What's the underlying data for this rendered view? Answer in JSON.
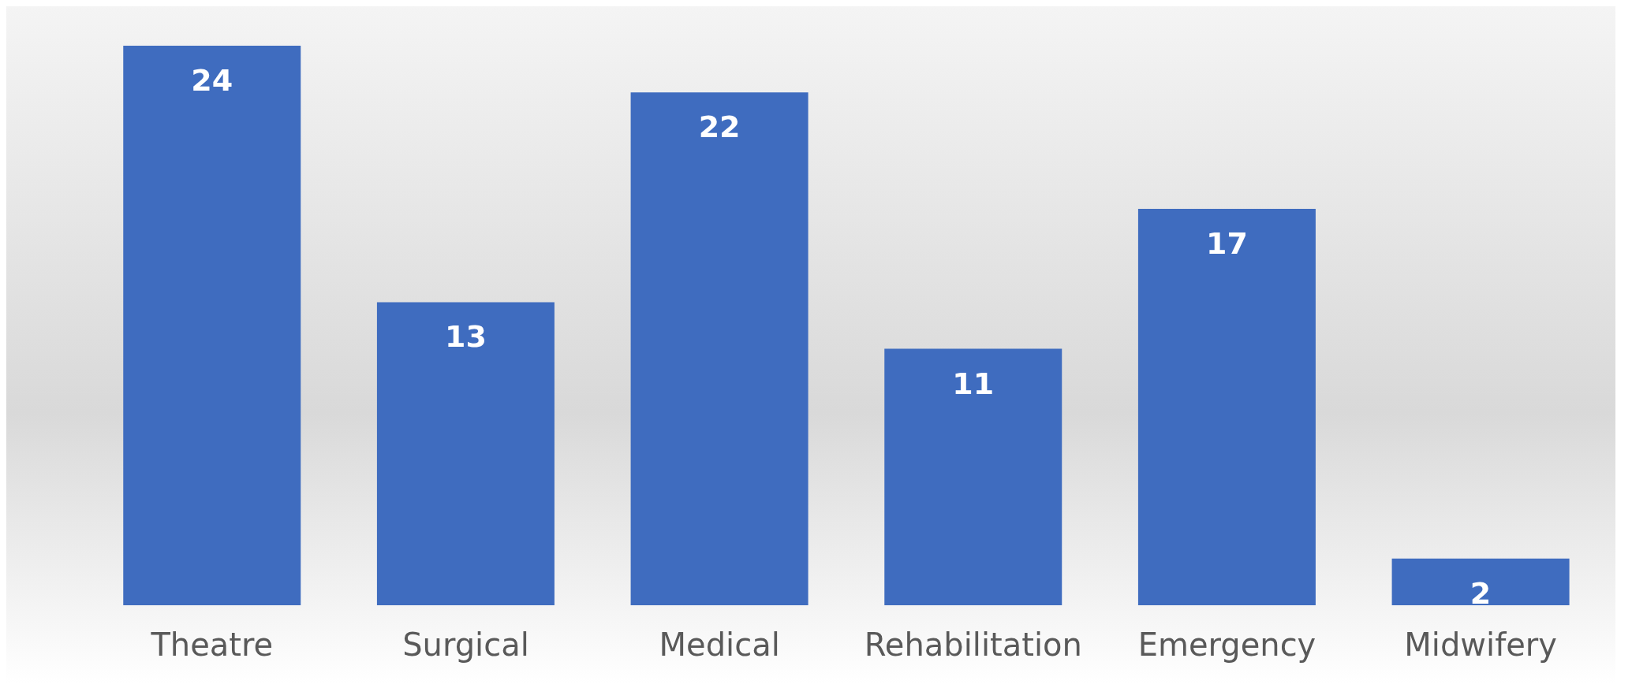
{
  "chart_data": {
    "type": "bar",
    "categories": [
      "Theatre",
      "Surgical",
      "Medical",
      "Rehabilitation",
      "Emergency",
      "Midwifery"
    ],
    "values": [
      24,
      13,
      22,
      11,
      17,
      2
    ],
    "color": "#3f6cbf",
    "data_labels": true
  }
}
